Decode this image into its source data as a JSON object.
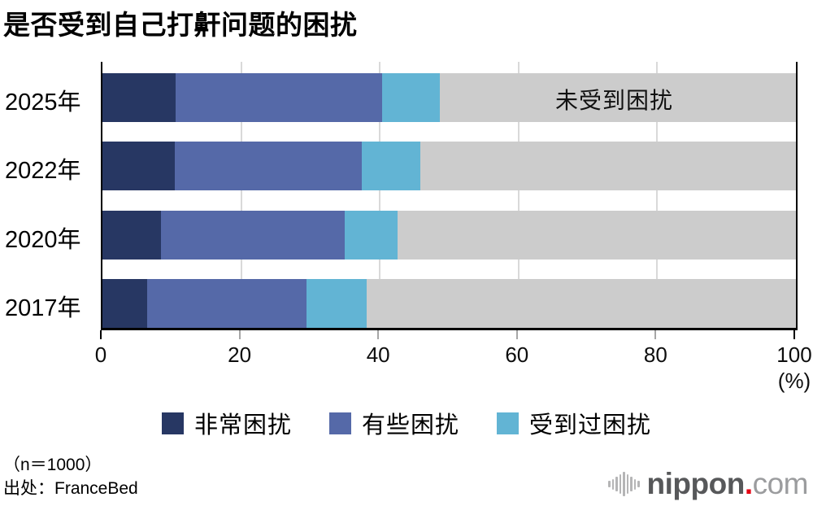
{
  "title": "是否受到自己打鼾问题的困扰",
  "chart_data": {
    "type": "bar",
    "orientation": "horizontal",
    "stacked": true,
    "title": "是否受到自己打鼾问题的困扰",
    "categories": [
      "2025年",
      "2022年",
      "2020年",
      "2017年"
    ],
    "series": [
      {
        "name": "非常困扰",
        "color": "#273763",
        "values": [
          10.6,
          10.4,
          8.4,
          6.5
        ]
      },
      {
        "name": "有些困扰",
        "color": "#5569a8",
        "values": [
          29.7,
          27.0,
          26.5,
          22.9
        ]
      },
      {
        "name": "受到过困扰",
        "color": "#62b4d4",
        "values": [
          8.4,
          8.4,
          7.7,
          8.7
        ]
      },
      {
        "name": "未受到困扰",
        "color": "#cccccc",
        "values": [
          51.3,
          54.2,
          57.4,
          61.9
        ]
      }
    ],
    "xlim": [
      0,
      100
    ],
    "x_ticks": [
      0,
      20,
      40,
      60,
      80,
      100
    ],
    "x_unit": "(%)",
    "grid": "vertical",
    "gridline_color": "#d9d9d9",
    "tick_color_mid": "#a6a6a6",
    "tick_color_end": "#000000",
    "bar_annotation": {
      "text": "未受到困扰",
      "row": "2025年"
    },
    "legend": [
      "非常困扰",
      "有些困扰",
      "受到过困扰"
    ],
    "legend_position": "bottom"
  },
  "footer": {
    "sample": "（n＝1000）",
    "source": "出处：FranceBed"
  },
  "logo": {
    "icon": "soundwave-bars-icon",
    "nippon": "nippon",
    "dot": ".",
    "com": "com",
    "dot_color": "#e60012"
  }
}
